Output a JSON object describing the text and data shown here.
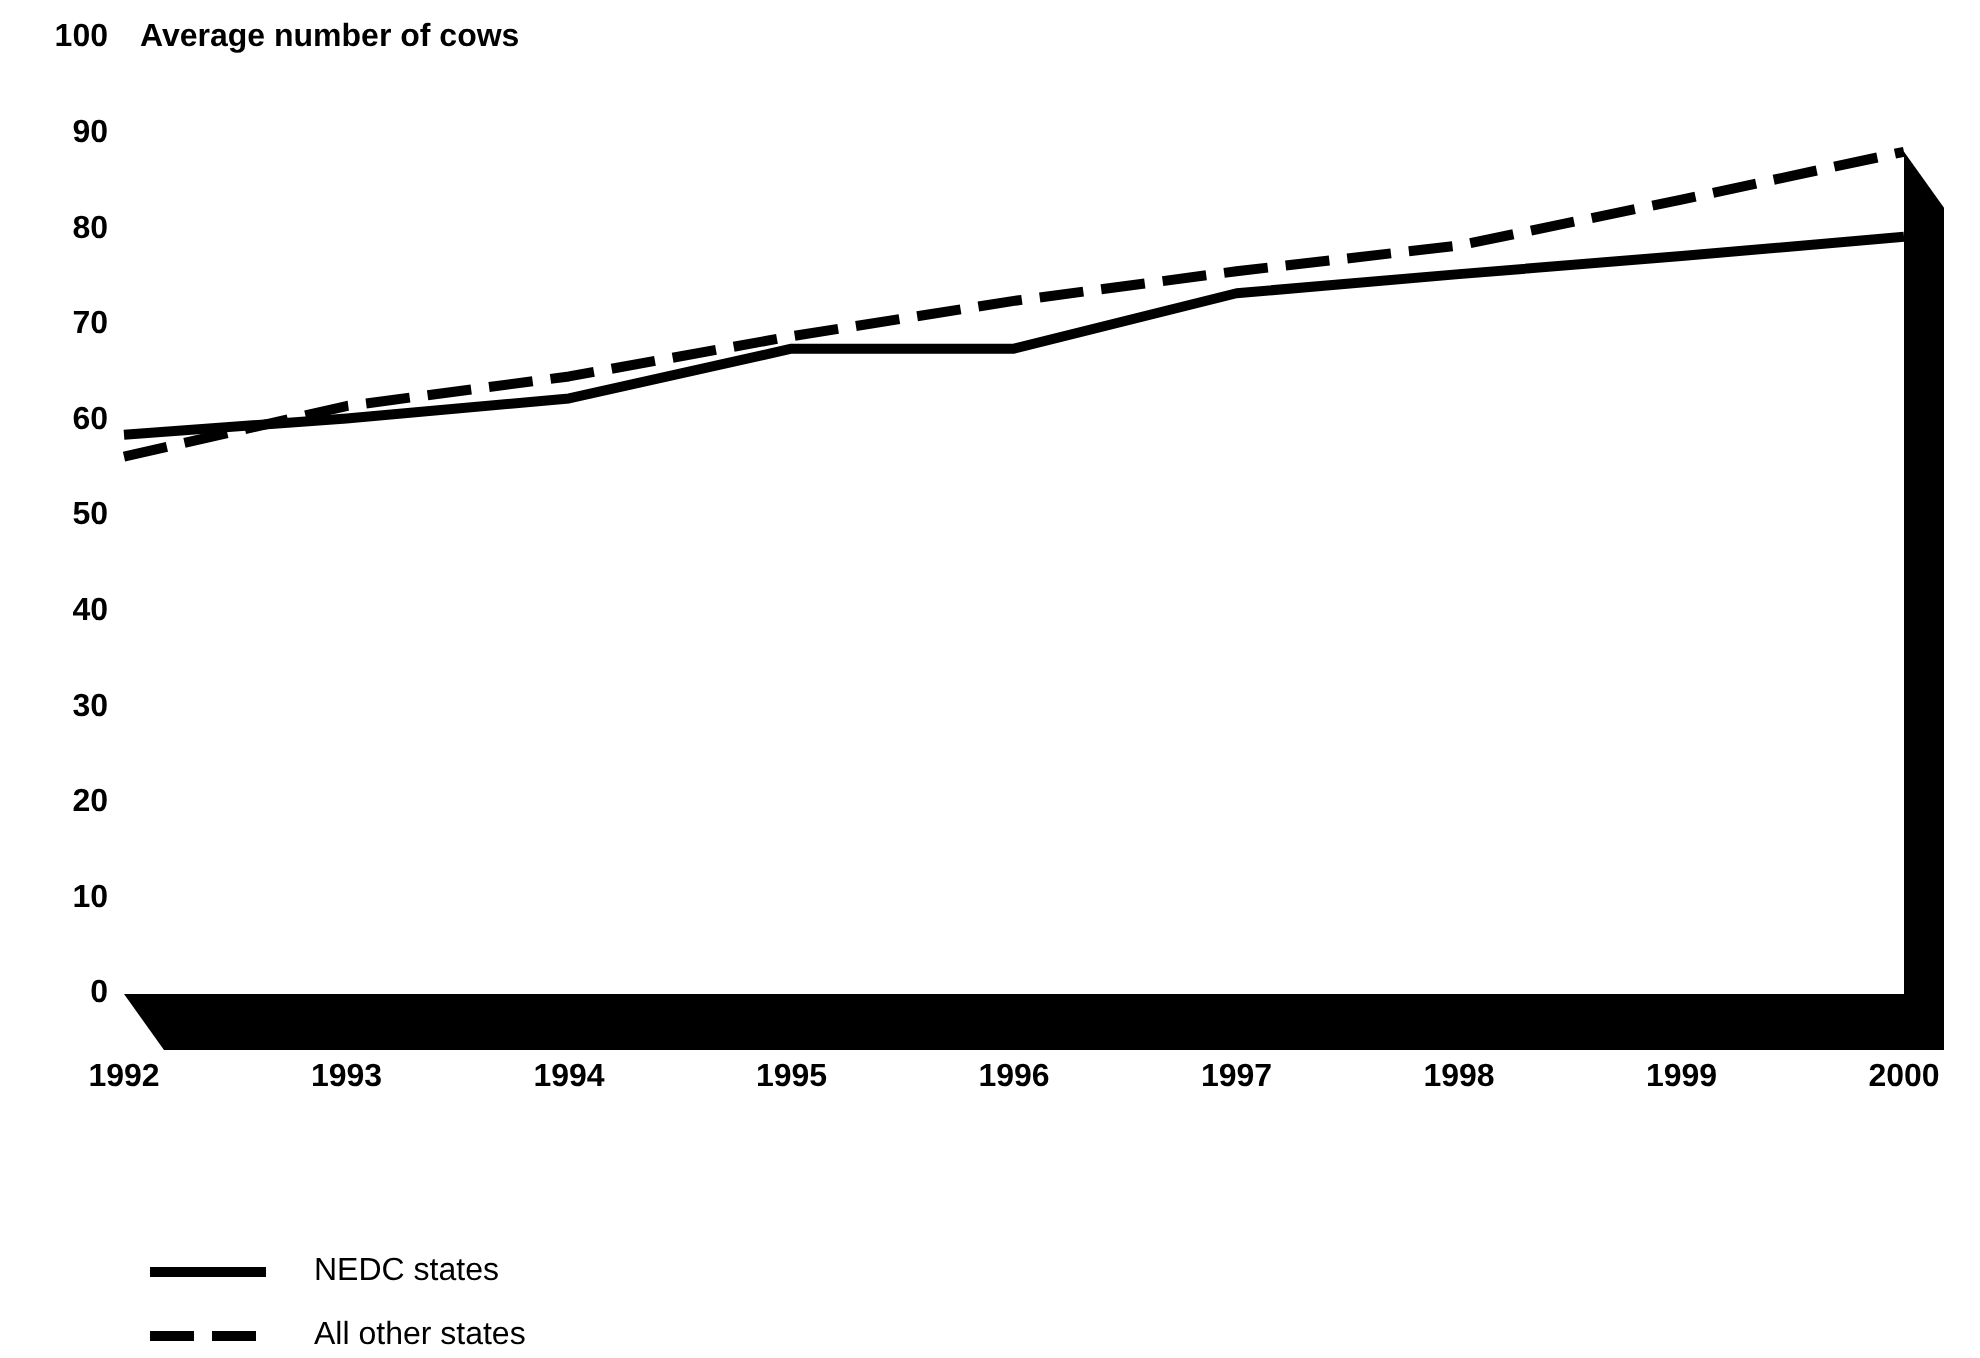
{
  "chart_data": {
    "type": "line",
    "ylabel": "Average number of cows",
    "x": [
      1992,
      1993,
      1994,
      1995,
      1996,
      1997,
      1998,
      1999,
      2000
    ],
    "xlim": [
      1992,
      2000
    ],
    "xticks": [
      1992,
      1993,
      1994,
      1995,
      1996,
      1997,
      1998,
      1999,
      2000
    ],
    "ylim": [
      0,
      100
    ],
    "yticks": [
      0,
      10,
      20,
      30,
      40,
      50,
      60,
      70,
      80,
      90,
      100
    ],
    "series": [
      {
        "name": "NEDC states",
        "color": "#000000",
        "line_style": "solid",
        "values": [
          58.5,
          60.2,
          62.3,
          67.5,
          67.5,
          73.3,
          75.3,
          77.2,
          79.2
        ]
      },
      {
        "name": "All other states",
        "color": "#000000",
        "line_style": "dashed",
        "values": [
          56.2,
          61.5,
          64.6,
          68.8,
          72.5,
          75.6,
          78.3,
          83.1,
          88.1
        ]
      }
    ],
    "legend": "bottom left"
  }
}
